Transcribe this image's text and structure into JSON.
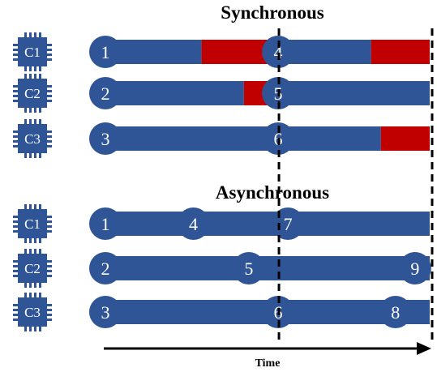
{
  "colors": {
    "task": "#2f5597",
    "idle": "#c00000",
    "chip": "#2f5597",
    "barrier": "#000000",
    "text_on_blue": "#ffffff"
  },
  "icons": {
    "core": "cpu-chip-icon"
  },
  "time_label": "Time",
  "sync": {
    "title": "Synchronous",
    "rows": [
      {
        "core": "C1",
        "tasks": [
          {
            "label": "1",
            "start": 0,
            "end": 0.3
          },
          {
            "label": "4",
            "start": 0.53,
            "end": 0.82
          }
        ],
        "idle": [
          [
            0.3,
            0.53
          ],
          [
            0.82,
            1.0
          ]
        ]
      },
      {
        "core": "C2",
        "tasks": [
          {
            "label": "2",
            "start": 0,
            "end": 0.43
          },
          {
            "label": "5",
            "start": 0.53,
            "end": 1.0
          }
        ],
        "idle": [
          [
            0.43,
            0.53
          ]
        ]
      },
      {
        "core": "C3",
        "tasks": [
          {
            "label": "3",
            "start": 0,
            "end": 0.53
          },
          {
            "label": "6",
            "start": 0.53,
            "end": 0.85
          }
        ],
        "idle": [
          [
            0.85,
            1.0
          ]
        ]
      }
    ]
  },
  "async": {
    "title": "Asynchronous",
    "rows": [
      {
        "core": "C1",
        "tasks": [
          {
            "label": "1",
            "start": 0
          },
          {
            "label": "4",
            "start": 0.27
          },
          {
            "label": "7",
            "start": 0.56
          }
        ],
        "end": 1.0
      },
      {
        "core": "C2",
        "tasks": [
          {
            "label": "2",
            "start": 0
          },
          {
            "label": "5",
            "start": 0.44
          },
          {
            "label": "9",
            "start": 0.95
          }
        ],
        "end": 1.0
      },
      {
        "core": "C3",
        "tasks": [
          {
            "label": "3",
            "start": 0
          },
          {
            "label": "6",
            "start": 0.53
          },
          {
            "label": "8",
            "start": 0.89
          }
        ],
        "end": 1.0
      }
    ]
  },
  "barriers": [
    0.53,
    1.0
  ]
}
